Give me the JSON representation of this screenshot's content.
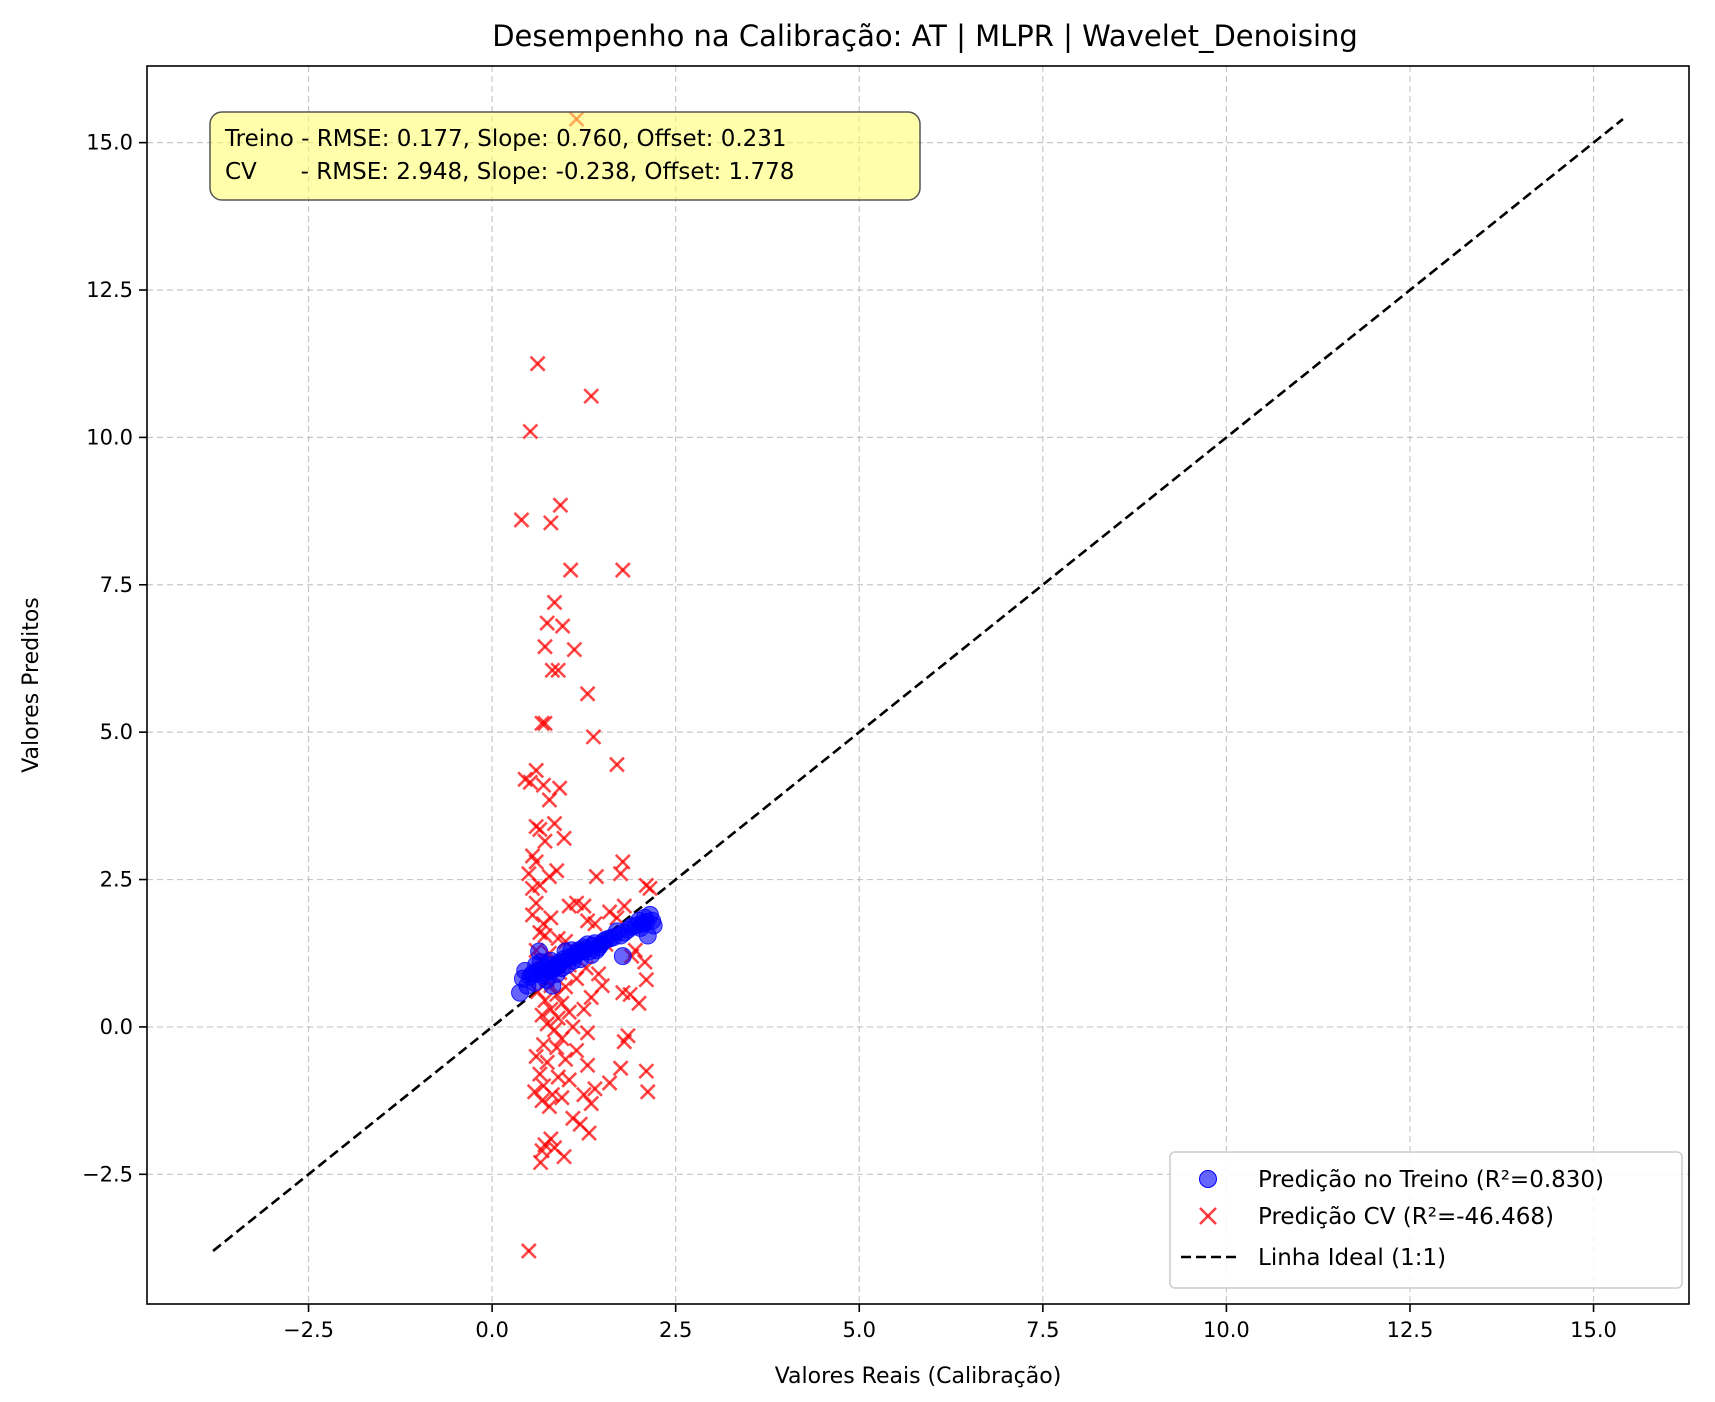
{
  "chart_data": {
    "type": "scatter",
    "title": "Desempenho na Calibração: AT | MLPR | Wavelet_Denoising",
    "xlabel": "Valores Reais (Calibração)",
    "ylabel": "Valores Preditos",
    "xlim": [
      -4.7,
      16.3
    ],
    "ylim": [
      -4.7,
      16.3
    ],
    "xticks": [
      -2.5,
      0.0,
      2.5,
      5.0,
      7.5,
      10.0,
      12.5,
      15.0
    ],
    "yticks": [
      -2.5,
      0.0,
      2.5,
      5.0,
      7.5,
      10.0,
      12.5,
      15.0
    ],
    "xtick_labels": [
      "−2.5",
      "0.0",
      "2.5",
      "5.0",
      "7.5",
      "10.0",
      "12.5",
      "15.0"
    ],
    "ytick_labels": [
      "−2.5",
      "0.0",
      "2.5",
      "5.0",
      "7.5",
      "10.0",
      "12.5",
      "15.0"
    ],
    "grid": true,
    "legend_position": "bottom-right",
    "stats_box": {
      "line1": "Treino - RMSE: 0.177, Slope: 0.760, Offset: 0.231",
      "line2": "CV      - RMSE: 2.948, Slope: -0.238, Offset: 1.778",
      "color": "#ffff66"
    },
    "series": [
      {
        "name": "Predição no Treino (R²=0.830)",
        "marker": "circle",
        "color": "#0000ff",
        "points": [
          [
            0.38,
            0.58
          ],
          [
            0.42,
            0.82
          ],
          [
            0.45,
            0.95
          ],
          [
            0.48,
            0.7
          ],
          [
            0.52,
            0.85
          ],
          [
            0.55,
            0.9
          ],
          [
            0.58,
            0.75
          ],
          [
            0.6,
            1.05
          ],
          [
            0.62,
            0.95
          ],
          [
            0.64,
            1.28
          ],
          [
            0.66,
            1.1
          ],
          [
            0.68,
            0.88
          ],
          [
            0.7,
            0.92
          ],
          [
            0.72,
            1.0
          ],
          [
            0.74,
            0.8
          ],
          [
            0.76,
            1.05
          ],
          [
            0.78,
            0.95
          ],
          [
            0.8,
            1.12
          ],
          [
            0.82,
            0.7
          ],
          [
            0.84,
            0.98
          ],
          [
            0.86,
            1.02
          ],
          [
            0.88,
            0.9
          ],
          [
            0.9,
            1.05
          ],
          [
            0.92,
            1.1
          ],
          [
            0.95,
            1.0
          ],
          [
            0.98,
            1.15
          ],
          [
            1.0,
            1.28
          ],
          [
            1.02,
            1.05
          ],
          [
            1.05,
            1.18
          ],
          [
            1.08,
            1.3
          ],
          [
            1.1,
            1.12
          ],
          [
            1.12,
            1.2
          ],
          [
            1.15,
            1.25
          ],
          [
            1.18,
            1.3
          ],
          [
            1.2,
            1.15
          ],
          [
            1.22,
            1.28
          ],
          [
            1.25,
            1.35
          ],
          [
            1.28,
            1.32
          ],
          [
            1.3,
            1.4
          ],
          [
            1.32,
            1.28
          ],
          [
            1.35,
            1.22
          ],
          [
            1.38,
            1.38
          ],
          [
            1.4,
            1.42
          ],
          [
            1.42,
            1.3
          ],
          [
            1.45,
            1.35
          ],
          [
            1.48,
            1.4
          ],
          [
            1.52,
            1.45
          ],
          [
            1.55,
            1.48
          ],
          [
            1.6,
            1.5
          ],
          [
            1.65,
            1.52
          ],
          [
            1.7,
            1.62
          ],
          [
            1.75,
            1.55
          ],
          [
            1.78,
            1.2
          ],
          [
            1.8,
            1.6
          ],
          [
            1.85,
            1.65
          ],
          [
            1.9,
            1.7
          ],
          [
            1.95,
            1.72
          ],
          [
            2.0,
            1.8
          ],
          [
            2.02,
            1.68
          ],
          [
            2.05,
            1.75
          ],
          [
            2.08,
            1.85
          ],
          [
            2.1,
            1.78
          ],
          [
            2.12,
            1.55
          ],
          [
            2.15,
            1.9
          ],
          [
            2.18,
            1.8
          ],
          [
            2.2,
            1.72
          ]
        ]
      },
      {
        "name": "Predição CV (R²=-46.468)",
        "marker": "x",
        "color": "#ff0000",
        "points": [
          [
            0.62,
            11.25
          ],
          [
            1.35,
            10.7
          ],
          [
            0.52,
            10.1
          ],
          [
            0.4,
            8.6
          ],
          [
            0.93,
            8.85
          ],
          [
            0.8,
            8.55
          ],
          [
            1.07,
            7.75
          ],
          [
            1.78,
            7.75
          ],
          [
            0.85,
            7.2
          ],
          [
            0.75,
            6.85
          ],
          [
            0.96,
            6.8
          ],
          [
            1.12,
            6.4
          ],
          [
            0.72,
            6.45
          ],
          [
            0.82,
            6.05
          ],
          [
            0.9,
            6.05
          ],
          [
            1.3,
            5.65
          ],
          [
            0.68,
            5.15
          ],
          [
            0.72,
            5.15
          ],
          [
            1.38,
            4.92
          ],
          [
            1.7,
            4.45
          ],
          [
            0.45,
            4.2
          ],
          [
            0.6,
            4.35
          ],
          [
            0.52,
            4.15
          ],
          [
            0.7,
            4.1
          ],
          [
            0.92,
            4.05
          ],
          [
            0.78,
            3.85
          ],
          [
            0.6,
            3.4
          ],
          [
            0.65,
            3.35
          ],
          [
            0.85,
            3.45
          ],
          [
            0.98,
            3.2
          ],
          [
            0.72,
            3.15
          ],
          [
            0.55,
            2.9
          ],
          [
            0.6,
            2.8
          ],
          [
            0.88,
            2.65
          ],
          [
            0.78,
            2.55
          ],
          [
            0.5,
            2.6
          ],
          [
            0.65,
            2.4
          ],
          [
            0.55,
            2.35
          ],
          [
            1.78,
            2.8
          ],
          [
            1.75,
            2.6
          ],
          [
            1.42,
            2.55
          ],
          [
            2.15,
            2.35
          ],
          [
            2.1,
            2.4
          ],
          [
            0.6,
            2.1
          ],
          [
            1.05,
            2.05
          ],
          [
            1.15,
            2.1
          ],
          [
            1.25,
            2.05
          ],
          [
            1.8,
            2.05
          ],
          [
            1.6,
            1.95
          ],
          [
            1.7,
            1.85
          ],
          [
            0.55,
            1.9
          ],
          [
            0.7,
            1.75
          ],
          [
            0.8,
            1.85
          ],
          [
            1.3,
            1.8
          ],
          [
            1.4,
            1.75
          ],
          [
            0.65,
            1.6
          ],
          [
            0.72,
            1.55
          ],
          [
            0.9,
            1.5
          ],
          [
            1.0,
            1.45
          ],
          [
            1.55,
            1.4
          ],
          [
            0.6,
            1.3
          ],
          [
            0.78,
            1.25
          ],
          [
            1.2,
            1.3
          ],
          [
            1.95,
            1.3
          ],
          [
            1.9,
            1.2
          ],
          [
            0.66,
            1.15
          ],
          [
            0.85,
            1.1
          ],
          [
            1.05,
            1.05
          ],
          [
            1.28,
            1.0
          ],
          [
            0.7,
            0.95
          ],
          [
            0.92,
            0.92
          ],
          [
            1.45,
            0.9
          ],
          [
            2.08,
            1.1
          ],
          [
            0.75,
            0.8
          ],
          [
            1.15,
            0.82
          ],
          [
            2.1,
            0.8
          ],
          [
            0.8,
            0.7
          ],
          [
            1.0,
            0.68
          ],
          [
            1.5,
            0.7
          ],
          [
            0.62,
            0.6
          ],
          [
            0.88,
            0.55
          ],
          [
            1.78,
            0.58
          ],
          [
            1.88,
            0.55
          ],
          [
            1.35,
            0.5
          ],
          [
            0.72,
            0.45
          ],
          [
            0.95,
            0.4
          ],
          [
            2.0,
            0.4
          ],
          [
            0.8,
            0.3
          ],
          [
            1.05,
            0.25
          ],
          [
            1.25,
            0.3
          ],
          [
            0.68,
            0.2
          ],
          [
            0.9,
            0.15
          ],
          [
            0.75,
            0.05
          ],
          [
            1.1,
            0.0
          ],
          [
            0.85,
            -0.05
          ],
          [
            1.3,
            -0.1
          ],
          [
            0.95,
            -0.2
          ],
          [
            1.85,
            -0.15
          ],
          [
            1.8,
            -0.25
          ],
          [
            0.7,
            -0.3
          ],
          [
            0.88,
            -0.35
          ],
          [
            1.15,
            -0.4
          ],
          [
            0.6,
            -0.5
          ],
          [
            1.0,
            -0.55
          ],
          [
            0.75,
            -0.6
          ],
          [
            1.3,
            -0.65
          ],
          [
            1.75,
            -0.7
          ],
          [
            2.1,
            -0.75
          ],
          [
            0.65,
            -0.8
          ],
          [
            0.9,
            -0.85
          ],
          [
            1.05,
            -0.9
          ],
          [
            1.6,
            -0.95
          ],
          [
            0.7,
            -1.0
          ],
          [
            1.4,
            -1.05
          ],
          [
            0.58,
            -1.1
          ],
          [
            0.82,
            -1.15
          ],
          [
            1.25,
            -1.15
          ],
          [
            2.12,
            -1.1
          ],
          [
            0.95,
            -1.2
          ],
          [
            0.68,
            -1.25
          ],
          [
            1.35,
            -1.3
          ],
          [
            0.78,
            -1.35
          ],
          [
            1.1,
            -1.55
          ],
          [
            1.2,
            -1.65
          ],
          [
            1.32,
            -1.8
          ],
          [
            0.8,
            -1.9
          ],
          [
            0.72,
            -2.0
          ],
          [
            0.68,
            -2.1
          ],
          [
            0.85,
            -2.05
          ],
          [
            0.98,
            -2.2
          ],
          [
            0.66,
            -2.3
          ],
          [
            0.5,
            -3.8
          ],
          [
            1.15,
            15.4
          ]
        ]
      },
      {
        "name": "Linha Ideal (1:1)",
        "marker": "dashed-line",
        "color": "#000000",
        "points": [
          [
            -3.8,
            -3.8
          ],
          [
            15.4,
            15.4
          ]
        ]
      }
    ]
  }
}
